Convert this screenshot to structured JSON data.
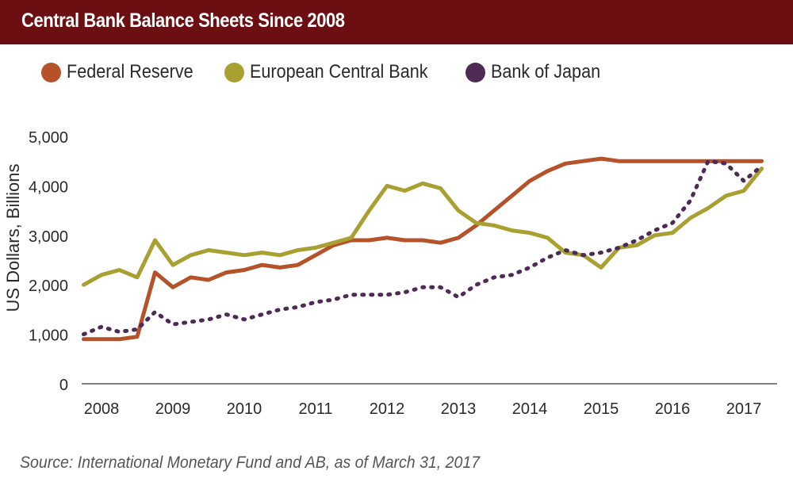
{
  "header": {
    "title": "Central Bank Balance Sheets Since 2008"
  },
  "legend": [
    {
      "label": "Federal Reserve",
      "color": "#b5522a"
    },
    {
      "label": "European Central Bank",
      "color": "#a9a032"
    },
    {
      "label": "Bank of Japan",
      "color": "#4e2b55"
    }
  ],
  "source": "Source: International Monetary Fund and AB, as of March 31, 2017",
  "chart_data": {
    "type": "line",
    "title": "Central Bank Balance Sheets Since 2008",
    "xlabel": "",
    "ylabel": "US Dollars, Billions",
    "ylim": [
      0,
      5000
    ],
    "yticks": [
      "0",
      "1,000",
      "2,000",
      "3,000",
      "4,000",
      "5,000"
    ],
    "xticks": [
      "2008",
      "2009",
      "2010",
      "2011",
      "2012",
      "2013",
      "2014",
      "2015",
      "2016",
      "2017"
    ],
    "grid": false,
    "legend_position": "top-left",
    "x": [
      2007.75,
      2008.0,
      2008.25,
      2008.5,
      2008.75,
      2009.0,
      2009.25,
      2009.5,
      2009.75,
      2010.0,
      2010.25,
      2010.5,
      2010.75,
      2011.0,
      2011.25,
      2011.5,
      2011.75,
      2012.0,
      2012.25,
      2012.5,
      2012.75,
      2013.0,
      2013.25,
      2013.5,
      2013.75,
      2014.0,
      2014.25,
      2014.5,
      2014.75,
      2015.0,
      2015.25,
      2015.5,
      2015.75,
      2016.0,
      2016.25,
      2016.5,
      2016.75,
      2017.0,
      2017.25
    ],
    "series": [
      {
        "name": "Federal Reserve",
        "line_style": "solid",
        "color": "#b5522a",
        "values": [
          900,
          900,
          900,
          950,
          2250,
          1950,
          2150,
          2100,
          2250,
          2300,
          2400,
          2350,
          2400,
          2600,
          2800,
          2900,
          2900,
          2950,
          2900,
          2900,
          2850,
          2950,
          3200,
          3500,
          3800,
          4100,
          4300,
          4450,
          4500,
          4550,
          4500,
          4500,
          4500,
          4500,
          4500,
          4500,
          4500,
          4500,
          4500
        ]
      },
      {
        "name": "European Central Bank",
        "line_style": "solid",
        "color": "#a9a032",
        "values": [
          2000,
          2200,
          2300,
          2150,
          2900,
          2400,
          2600,
          2700,
          2650,
          2600,
          2650,
          2600,
          2700,
          2750,
          2850,
          2950,
          3500,
          4000,
          3900,
          4050,
          3950,
          3500,
          3250,
          3200,
          3100,
          3050,
          2950,
          2650,
          2600,
          2350,
          2750,
          2800,
          3000,
          3050,
          3350,
          3550,
          3800,
          3900,
          4350
        ]
      },
      {
        "name": "Bank of Japan",
        "line_style": "dotted",
        "color": "#4e2b55",
        "values": [
          1000,
          1150,
          1050,
          1100,
          1450,
          1200,
          1250,
          1300,
          1400,
          1300,
          1400,
          1500,
          1550,
          1650,
          1700,
          1800,
          1800,
          1800,
          1850,
          1950,
          1950,
          1750,
          2000,
          2150,
          2200,
          2350,
          2550,
          2700,
          2600,
          2650,
          2750,
          2900,
          3100,
          3250,
          3700,
          4500,
          4450,
          4100,
          4400
        ]
      }
    ]
  }
}
